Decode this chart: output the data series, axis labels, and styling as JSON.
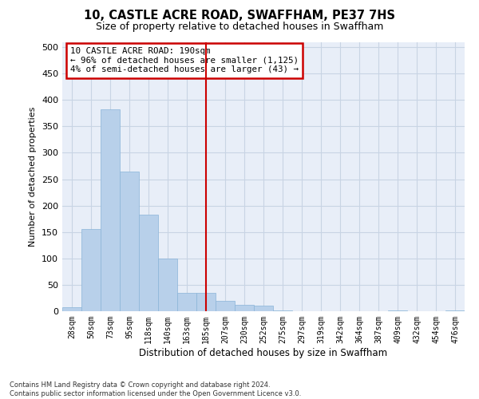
{
  "title": "10, CASTLE ACRE ROAD, SWAFFHAM, PE37 7HS",
  "subtitle": "Size of property relative to detached houses in Swaffham",
  "xlabel": "Distribution of detached houses by size in Swaffham",
  "ylabel": "Number of detached properties",
  "bin_labels": [
    "28sqm",
    "50sqm",
    "73sqm",
    "95sqm",
    "118sqm",
    "140sqm",
    "163sqm",
    "185sqm",
    "207sqm",
    "230sqm",
    "252sqm",
    "275sqm",
    "297sqm",
    "319sqm",
    "342sqm",
    "364sqm",
    "387sqm",
    "409sqm",
    "432sqm",
    "454sqm",
    "476sqm"
  ],
  "values": [
    8,
    155,
    382,
    265,
    183,
    100,
    35,
    35,
    20,
    12,
    10,
    2,
    0,
    0,
    0,
    0,
    0,
    2,
    0,
    0,
    2
  ],
  "bar_color": "#b8d0ea",
  "bar_edge_color": "#8ab4d8",
  "vline_x_index": 7,
  "vline_color": "#cc0000",
  "annotation_text": "10 CASTLE ACRE ROAD: 190sqm\n← 96% of detached houses are smaller (1,125)\n4% of semi-detached houses are larger (43) →",
  "annotation_box_color": "#cc0000",
  "ylim": [
    0,
    510
  ],
  "yticks": [
    0,
    50,
    100,
    150,
    200,
    250,
    300,
    350,
    400,
    450,
    500
  ],
  "grid_color": "#c8d4e4",
  "background_color": "#e8eef8",
  "footer_line1": "Contains HM Land Registry data © Crown copyright and database right 2024.",
  "footer_line2": "Contains public sector information licensed under the Open Government Licence v3.0."
}
